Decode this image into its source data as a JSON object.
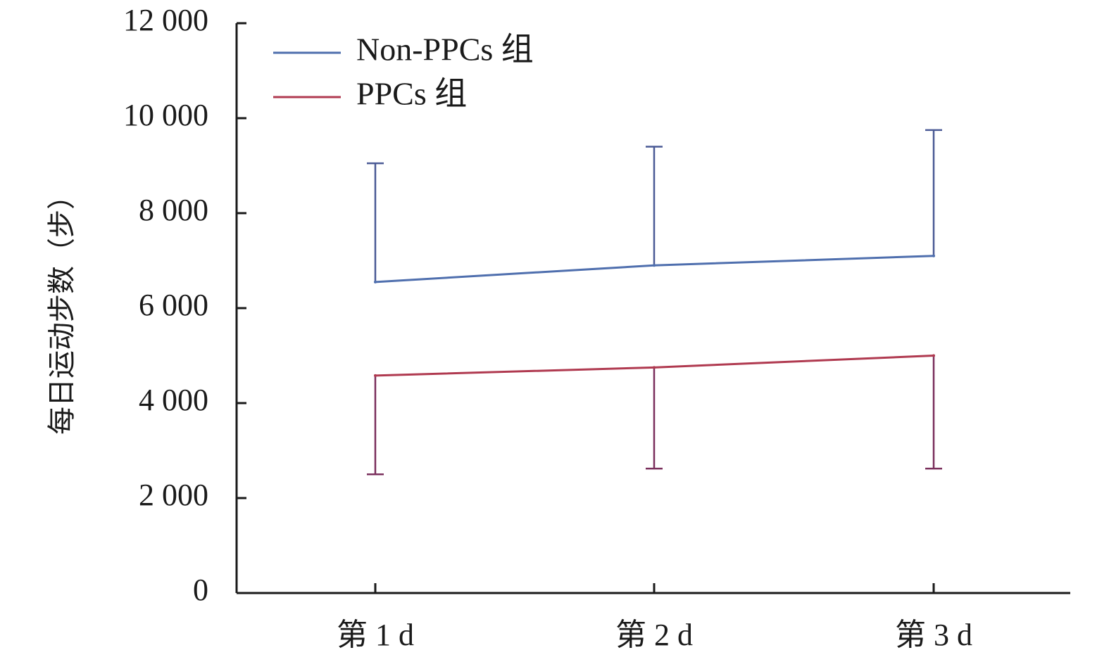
{
  "chart_data": {
    "type": "line",
    "title": "",
    "xlabel": "",
    "ylabel": "每日运动步数（步）",
    "categories": [
      "第 1 d",
      "第 2 d",
      "第 3 d"
    ],
    "ylim": [
      0,
      12000
    ],
    "yticks": [
      0,
      2000,
      4000,
      6000,
      8000,
      10000,
      12000
    ],
    "ytick_labels": [
      "0",
      "2 000",
      "4 000",
      "6 000",
      "8 000",
      "10 000",
      "12 000"
    ],
    "grid": false,
    "legend_position": "top-left",
    "series": [
      {
        "name": "Non-PPCs 组",
        "color": "#4f6fae",
        "error_color": "#4a5a95",
        "values": [
          6550,
          6900,
          7100
        ],
        "error_upper": [
          9050,
          9400,
          9750
        ],
        "error_direction": "up"
      },
      {
        "name": "PPCs 组",
        "color": "#b03a50",
        "error_color": "#7a2f5c",
        "values": [
          4580,
          4750,
          5000
        ],
        "error_lower": [
          2500,
          2620,
          2620
        ],
        "error_direction": "down"
      }
    ]
  }
}
